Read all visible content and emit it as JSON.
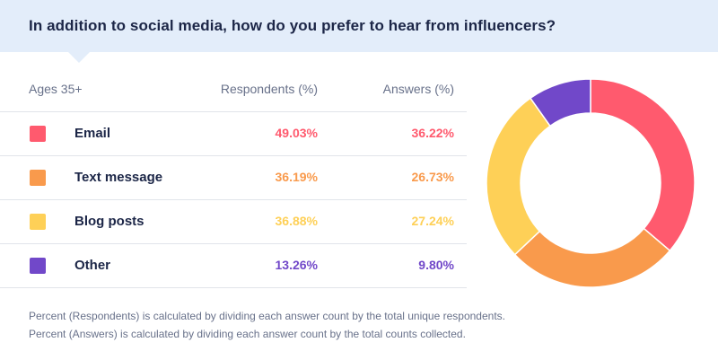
{
  "header": {
    "title": "In addition to social media, how do you prefer to hear from influencers?"
  },
  "table": {
    "group_label": "Ages 35+",
    "col_respondents": "Respondents (%)",
    "col_answers": "Answers (%)",
    "rows": [
      {
        "label": "Email",
        "respondents": "49.03%",
        "answers": "36.22%",
        "color": "#ff5a6e"
      },
      {
        "label": "Text message",
        "respondents": "36.19%",
        "answers": "26.73%",
        "color": "#f99a4c"
      },
      {
        "label": "Blog posts",
        "respondents": "36.88%",
        "answers": "27.24%",
        "color": "#fed057"
      },
      {
        "label": "Other",
        "respondents": "13.26%",
        "answers": "9.80%",
        "color": "#7148c9"
      }
    ]
  },
  "footnotes": [
    "Percent (Respondents) is calculated by dividing each answer count by the total unique respondents.",
    "Percent (Answers) is calculated by dividing each answer count by the total counts collected."
  ],
  "chart_data": {
    "type": "pie",
    "donut": true,
    "categories": [
      "Email",
      "Text message",
      "Blog posts",
      "Other"
    ],
    "values": [
      36.22,
      26.73,
      27.24,
      9.8
    ],
    "colors": [
      "#ff5a6e",
      "#f99a4c",
      "#fed057",
      "#7148c9"
    ],
    "start": "top",
    "direction": "clockwise"
  }
}
